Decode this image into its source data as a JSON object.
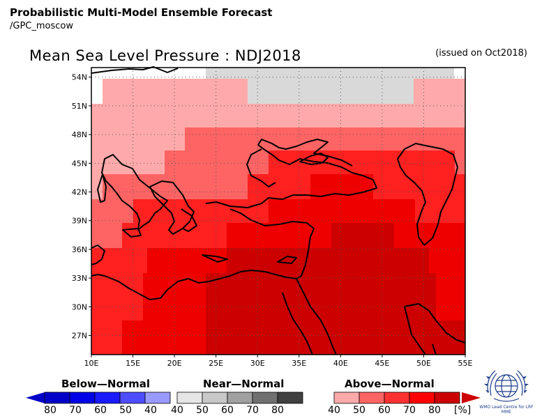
{
  "header": {
    "title": "Probabilistic Multi-Model Ensemble Forecast",
    "subtitle": "/GPC_moscow"
  },
  "map": {
    "title": "Mean Sea Level Pressure : NDJ2018",
    "issued": "(issued on Oct2018)",
    "lat_labels": [
      "54N",
      "51N",
      "48N",
      "45N",
      "42N",
      "39N",
      "36N",
      "33N",
      "30N",
      "27N"
    ],
    "lon_labels": [
      "10E",
      "15E",
      "20E",
      "25E",
      "30E",
      "35E",
      "40E",
      "45E",
      "50E",
      "55E"
    ],
    "lon_range": [
      10,
      55
    ],
    "lat_range": [
      25,
      55
    ],
    "category_colors": {
      "below": [
        "#0000c8",
        "#0000e6",
        "#1a1aff",
        "#4d4dff",
        "#9999ff"
      ],
      "near": [
        "#e6e6e6",
        "#c8c8c8",
        "#a0a0a0",
        "#707070",
        "#404040"
      ],
      "above": [
        "#ffaaaa",
        "#ff6464",
        "#ff3232",
        "#ff0000",
        "#cc0000"
      ]
    }
  },
  "legend": {
    "below": {
      "label": "Below—Normal",
      "ticks": [
        "80",
        "70",
        "60",
        "50",
        "40"
      ]
    },
    "near": {
      "label": "Near—Normal",
      "ticks": [
        "40",
        "50",
        "60",
        "70",
        "80"
      ]
    },
    "above": {
      "label": "Above—Normal",
      "ticks": [
        "40",
        "50",
        "60",
        "70",
        "80"
      ],
      "unit": "[%]"
    }
  },
  "logo": {
    "name": "wmo-emblem-icon",
    "text": "WMO Lead Centre for LRF MME"
  }
}
